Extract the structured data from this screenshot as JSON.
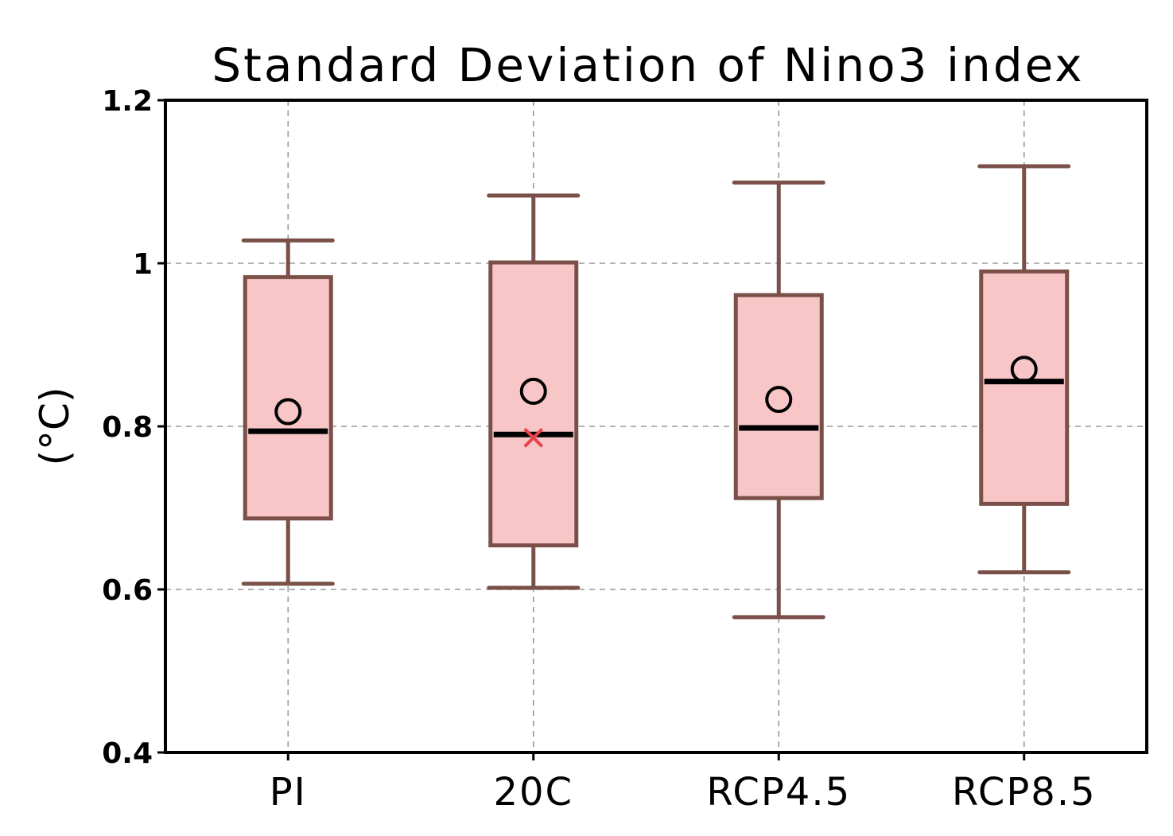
{
  "chart_data": {
    "type": "box",
    "title": "Standard Deviation of Nino3 index",
    "ylabel": "(°C)",
    "xlabel": "",
    "ylim": [
      0.4,
      1.2
    ],
    "yticks": [
      0.4,
      0.6,
      0.8,
      1.0,
      1.2
    ],
    "ytick_labels": [
      "0.4",
      "0.6",
      "0.8",
      "1",
      "1.2"
    ],
    "grid": true,
    "categories": [
      "PI",
      "20C",
      "RCP4.5",
      "RCP8.5"
    ],
    "boxes": [
      {
        "category": "PI",
        "whisker_low": 0.607,
        "q1": 0.687,
        "median": 0.794,
        "q3": 0.983,
        "whisker_high": 1.028,
        "mean": 0.818,
        "marker": null
      },
      {
        "category": "20C",
        "whisker_low": 0.602,
        "q1": 0.654,
        "median": 0.79,
        "q3": 1.001,
        "whisker_high": 1.083,
        "mean": 0.843,
        "marker": 0.786
      },
      {
        "category": "RCP4.5",
        "whisker_low": 0.566,
        "q1": 0.712,
        "median": 0.798,
        "q3": 0.961,
        "whisker_high": 1.099,
        "mean": 0.833,
        "marker": null
      },
      {
        "category": "RCP8.5",
        "whisker_low": 0.621,
        "q1": 0.705,
        "median": 0.855,
        "q3": 0.99,
        "whisker_high": 1.119,
        "mean": 0.87,
        "marker": null
      }
    ],
    "colors": {
      "box_fill": "#f8c6c7",
      "box_stroke": "#7a5048",
      "median": "#000000",
      "mean_marker": "#000000",
      "x_marker": "#e8434a",
      "grid": "#999999"
    }
  }
}
